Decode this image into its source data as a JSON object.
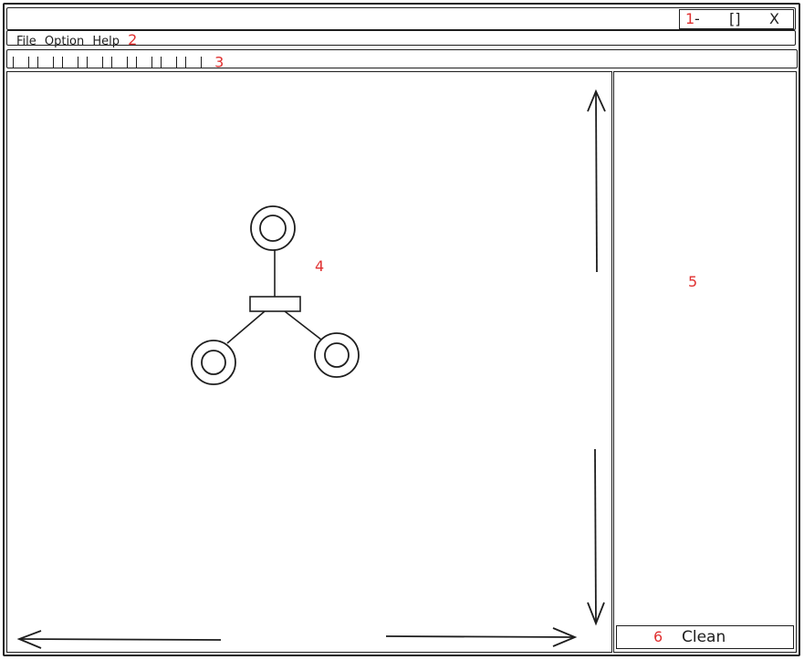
{
  "markers": [
    "1",
    "2",
    "3",
    "4",
    "5",
    "6"
  ],
  "window_controls": {
    "minimize": "-",
    "maximize": "[]",
    "close": "X"
  },
  "menu": {
    "items": [
      "File",
      "Option",
      "Help"
    ]
  },
  "toolbar": {
    "button_count": 8
  },
  "sidebar": {
    "clean_label": "Clean"
  },
  "colors": {
    "ink": "#1e1e1e",
    "annotation": "#e03131"
  },
  "icons": [
    "minimize-icon",
    "maximize-icon",
    "close-icon",
    "scroll-up-arrow-icon",
    "scroll-down-arrow-icon",
    "scroll-left-arrow-icon",
    "scroll-right-arrow-icon"
  ]
}
